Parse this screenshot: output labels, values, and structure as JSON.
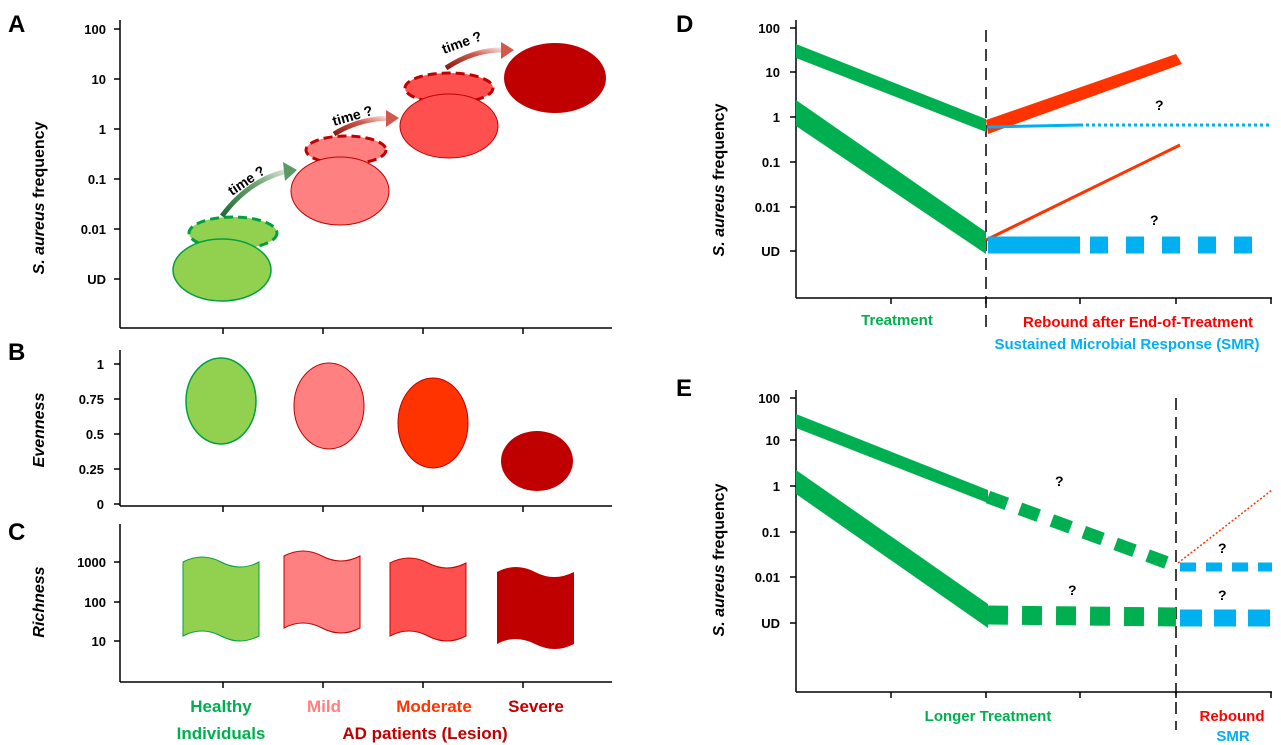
{
  "panels": {
    "A": {
      "letter": "A",
      "ylabel_italic": "S. aureus",
      "ylabel_rest": " frequency",
      "ticks": [
        "100",
        "10",
        "1",
        "0.1",
        "0.01",
        "UD"
      ],
      "arrow_label": "time ?"
    },
    "B": {
      "letter": "B",
      "ylabel": "Evenness",
      "ticks": [
        "1",
        "0.75",
        "0.5",
        "0.25",
        "0"
      ]
    },
    "C": {
      "letter": "C",
      "ylabel": "Richness",
      "ticks": [
        "1000",
        "100",
        "10"
      ]
    },
    "D": {
      "letter": "D",
      "ylabel_italic": "S. aureus",
      "ylabel_rest": " frequency",
      "ticks": [
        "100",
        "10",
        "1",
        "0.1",
        "0.01",
        "UD"
      ],
      "question": "?",
      "treatment_label": "Treatment",
      "rebound_label": "Rebound after End-of-Treatment",
      "smr_label": "Sustained Microbial Response (SMR)"
    },
    "E": {
      "letter": "E",
      "ylabel_italic": "S. aureus",
      "ylabel_rest": " frequency",
      "ticks": [
        "100",
        "10",
        "1",
        "0.1",
        "0.01",
        "UD"
      ],
      "question": "?",
      "treatment_label": "Longer  Treatment",
      "rebound_label": "Rebound",
      "smr_label": "SMR"
    }
  },
  "categories": {
    "healthy_line1": "Healthy",
    "healthy_line2": "Individuals",
    "mild": "Mild",
    "moderate": "Moderate",
    "severe": "Severe",
    "ad_patients": "AD patients  (Lesion)"
  },
  "colors": {
    "green_healthy": "#92d050",
    "green_line": "#00b050",
    "mild": "#ff7f7f",
    "moderate_b": "#ff3300",
    "moderate_a": "#ff5050",
    "severe": "#c00000",
    "rebound_red": "#ff3300",
    "smr_blue": "#00b0f0",
    "treatment_green": "#00b050"
  }
}
